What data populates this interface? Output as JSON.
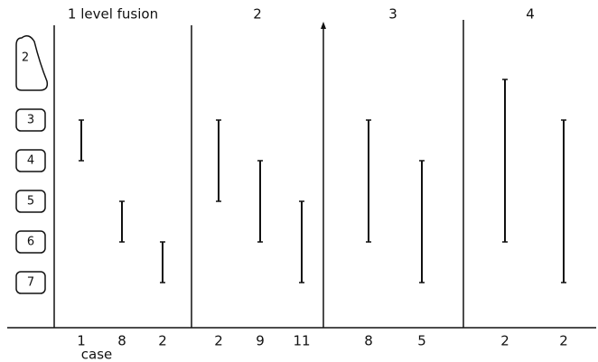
{
  "columns": [
    {
      "title": "1 level fusion",
      "cases": [
        {
          "case": 1,
          "from": 3,
          "to": 4
        },
        {
          "case": 8,
          "from": 5,
          "to": 6
        },
        {
          "case": 2,
          "from": 6,
          "to": 7
        }
      ]
    },
    {
      "title": "2",
      "cases": [
        {
          "case": 2,
          "from": 3,
          "to": 5
        },
        {
          "case": 9,
          "from": 4,
          "to": 6
        },
        {
          "case": 11,
          "from": 5,
          "to": 7
        }
      ]
    },
    {
      "title": "3",
      "cases": [
        {
          "case": 8,
          "from": 3,
          "to": 6
        },
        {
          "case": 5,
          "from": 4,
          "to": 7
        }
      ]
    },
    {
      "title": "4",
      "cases": [
        {
          "case": 2,
          "from": 2,
          "to": 6
        },
        {
          "case": 2,
          "from": 3,
          "to": 7
        }
      ]
    }
  ],
  "vertebrae": [
    "2",
    "3",
    "4",
    "5",
    "6",
    "7"
  ],
  "case_label": "case"
}
